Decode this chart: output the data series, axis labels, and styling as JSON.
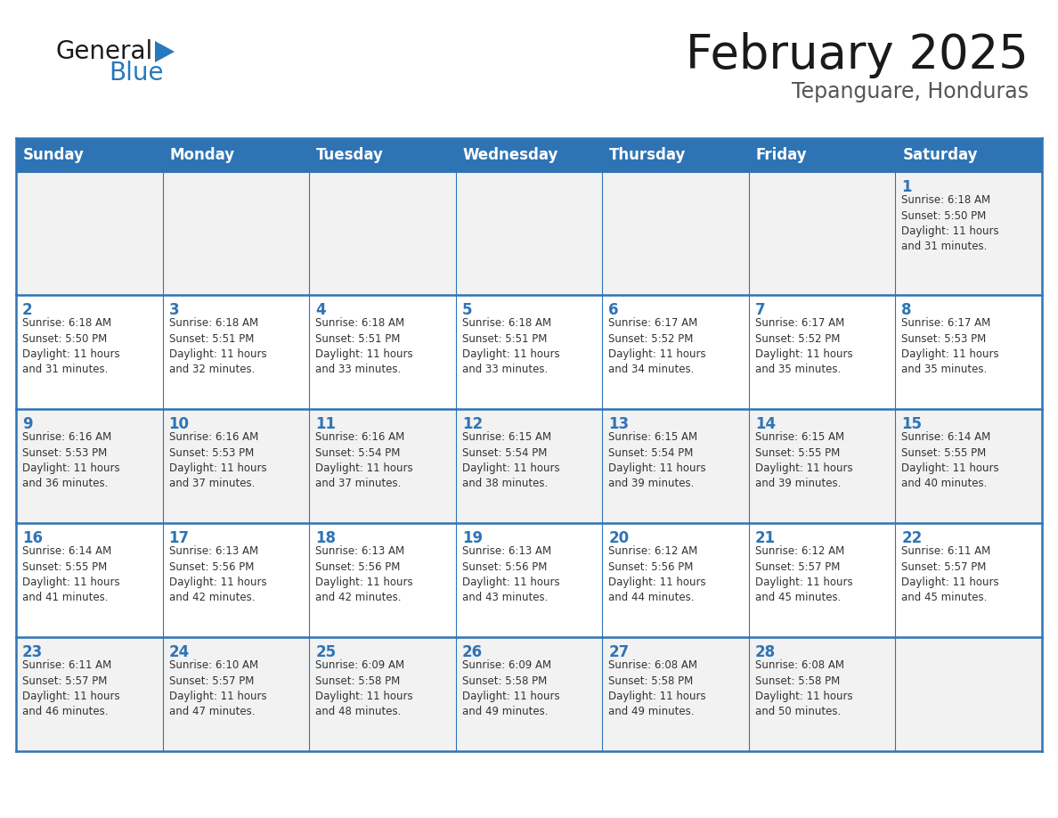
{
  "title": "February 2025",
  "subtitle": "Tepanguare, Honduras",
  "header_bg": "#2E74B5",
  "header_text_color": "#FFFFFF",
  "cell_bg_white": "#FFFFFF",
  "cell_bg_gray": "#F2F2F2",
  "border_color": "#2E74B5",
  "text_color": "#333333",
  "day_num_color": "#2E74B5",
  "day_headers": [
    "Sunday",
    "Monday",
    "Tuesday",
    "Wednesday",
    "Thursday",
    "Friday",
    "Saturday"
  ],
  "weeks": [
    [
      {
        "day": "",
        "info": ""
      },
      {
        "day": "",
        "info": ""
      },
      {
        "day": "",
        "info": ""
      },
      {
        "day": "",
        "info": ""
      },
      {
        "day": "",
        "info": ""
      },
      {
        "day": "",
        "info": ""
      },
      {
        "day": "1",
        "info": "Sunrise: 6:18 AM\nSunset: 5:50 PM\nDaylight: 11 hours\nand 31 minutes."
      }
    ],
    [
      {
        "day": "2",
        "info": "Sunrise: 6:18 AM\nSunset: 5:50 PM\nDaylight: 11 hours\nand 31 minutes."
      },
      {
        "day": "3",
        "info": "Sunrise: 6:18 AM\nSunset: 5:51 PM\nDaylight: 11 hours\nand 32 minutes."
      },
      {
        "day": "4",
        "info": "Sunrise: 6:18 AM\nSunset: 5:51 PM\nDaylight: 11 hours\nand 33 minutes."
      },
      {
        "day": "5",
        "info": "Sunrise: 6:18 AM\nSunset: 5:51 PM\nDaylight: 11 hours\nand 33 minutes."
      },
      {
        "day": "6",
        "info": "Sunrise: 6:17 AM\nSunset: 5:52 PM\nDaylight: 11 hours\nand 34 minutes."
      },
      {
        "day": "7",
        "info": "Sunrise: 6:17 AM\nSunset: 5:52 PM\nDaylight: 11 hours\nand 35 minutes."
      },
      {
        "day": "8",
        "info": "Sunrise: 6:17 AM\nSunset: 5:53 PM\nDaylight: 11 hours\nand 35 minutes."
      }
    ],
    [
      {
        "day": "9",
        "info": "Sunrise: 6:16 AM\nSunset: 5:53 PM\nDaylight: 11 hours\nand 36 minutes."
      },
      {
        "day": "10",
        "info": "Sunrise: 6:16 AM\nSunset: 5:53 PM\nDaylight: 11 hours\nand 37 minutes."
      },
      {
        "day": "11",
        "info": "Sunrise: 6:16 AM\nSunset: 5:54 PM\nDaylight: 11 hours\nand 37 minutes."
      },
      {
        "day": "12",
        "info": "Sunrise: 6:15 AM\nSunset: 5:54 PM\nDaylight: 11 hours\nand 38 minutes."
      },
      {
        "day": "13",
        "info": "Sunrise: 6:15 AM\nSunset: 5:54 PM\nDaylight: 11 hours\nand 39 minutes."
      },
      {
        "day": "14",
        "info": "Sunrise: 6:15 AM\nSunset: 5:55 PM\nDaylight: 11 hours\nand 39 minutes."
      },
      {
        "day": "15",
        "info": "Sunrise: 6:14 AM\nSunset: 5:55 PM\nDaylight: 11 hours\nand 40 minutes."
      }
    ],
    [
      {
        "day": "16",
        "info": "Sunrise: 6:14 AM\nSunset: 5:55 PM\nDaylight: 11 hours\nand 41 minutes."
      },
      {
        "day": "17",
        "info": "Sunrise: 6:13 AM\nSunset: 5:56 PM\nDaylight: 11 hours\nand 42 minutes."
      },
      {
        "day": "18",
        "info": "Sunrise: 6:13 AM\nSunset: 5:56 PM\nDaylight: 11 hours\nand 42 minutes."
      },
      {
        "day": "19",
        "info": "Sunrise: 6:13 AM\nSunset: 5:56 PM\nDaylight: 11 hours\nand 43 minutes."
      },
      {
        "day": "20",
        "info": "Sunrise: 6:12 AM\nSunset: 5:56 PM\nDaylight: 11 hours\nand 44 minutes."
      },
      {
        "day": "21",
        "info": "Sunrise: 6:12 AM\nSunset: 5:57 PM\nDaylight: 11 hours\nand 45 minutes."
      },
      {
        "day": "22",
        "info": "Sunrise: 6:11 AM\nSunset: 5:57 PM\nDaylight: 11 hours\nand 45 minutes."
      }
    ],
    [
      {
        "day": "23",
        "info": "Sunrise: 6:11 AM\nSunset: 5:57 PM\nDaylight: 11 hours\nand 46 minutes."
      },
      {
        "day": "24",
        "info": "Sunrise: 6:10 AM\nSunset: 5:57 PM\nDaylight: 11 hours\nand 47 minutes."
      },
      {
        "day": "25",
        "info": "Sunrise: 6:09 AM\nSunset: 5:58 PM\nDaylight: 11 hours\nand 48 minutes."
      },
      {
        "day": "26",
        "info": "Sunrise: 6:09 AM\nSunset: 5:58 PM\nDaylight: 11 hours\nand 49 minutes."
      },
      {
        "day": "27",
        "info": "Sunrise: 6:08 AM\nSunset: 5:58 PM\nDaylight: 11 hours\nand 49 minutes."
      },
      {
        "day": "28",
        "info": "Sunrise: 6:08 AM\nSunset: 5:58 PM\nDaylight: 11 hours\nand 50 minutes."
      },
      {
        "day": "",
        "info": ""
      }
    ]
  ],
  "logo_general_color": "#1a1a1a",
  "logo_blue_color": "#2779BD",
  "title_fontsize": 38,
  "subtitle_fontsize": 17,
  "day_header_fontsize": 12,
  "day_num_fontsize": 12,
  "info_fontsize": 8.5
}
